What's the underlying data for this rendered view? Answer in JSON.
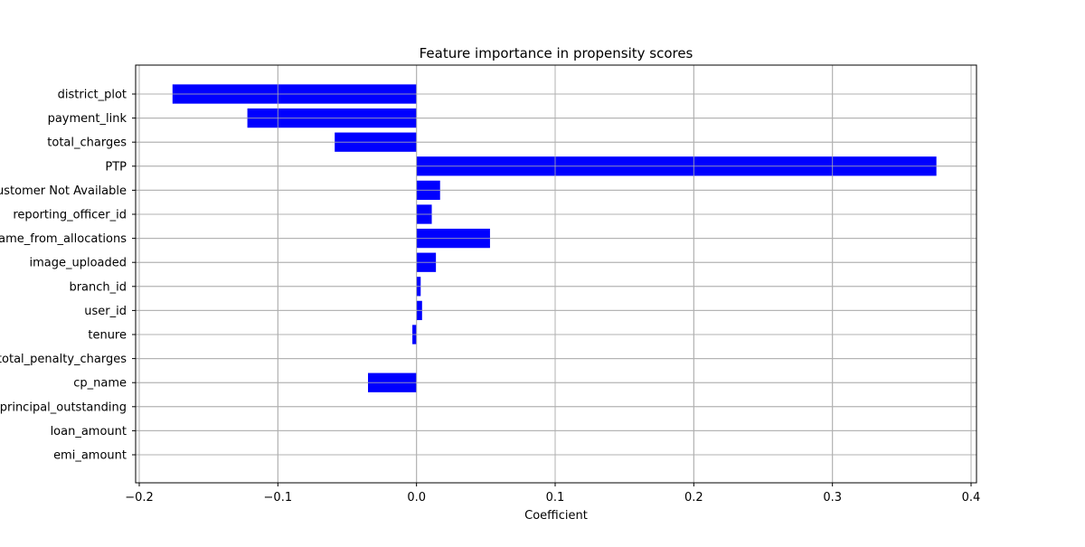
{
  "chart_data": {
    "type": "bar",
    "orientation": "horizontal",
    "title": "Feature importance in propensity scores",
    "xlabel": "Coefficient",
    "ylabel": "",
    "xlim": [
      -0.2,
      0.4
    ],
    "xticks": [
      -0.2,
      -0.1,
      0.0,
      0.1,
      0.2,
      0.3,
      0.4
    ],
    "xtick_labels": [
      "−0.2",
      "−0.1",
      "0.0",
      "0.1",
      "0.2",
      "0.3",
      "0.4"
    ],
    "grid": true,
    "bar_color": "#0000ff",
    "categories": [
      "district_plot",
      "payment_link",
      "total_charges",
      "PTP",
      "Customer Not Available",
      "reporting_officer_id",
      "name_from_allocations",
      "image_uploaded",
      "branch_id",
      "user_id",
      "tenure",
      "total_penalty_charges",
      "cp_name",
      "principal_outstanding",
      "loan_amount",
      "emi_amount"
    ],
    "values": [
      -0.176,
      -0.122,
      -0.059,
      0.375,
      0.017,
      0.011,
      0.053,
      0.014,
      0.003,
      0.004,
      -0.003,
      0.0,
      -0.035,
      0.0,
      0.0,
      0.0
    ]
  }
}
